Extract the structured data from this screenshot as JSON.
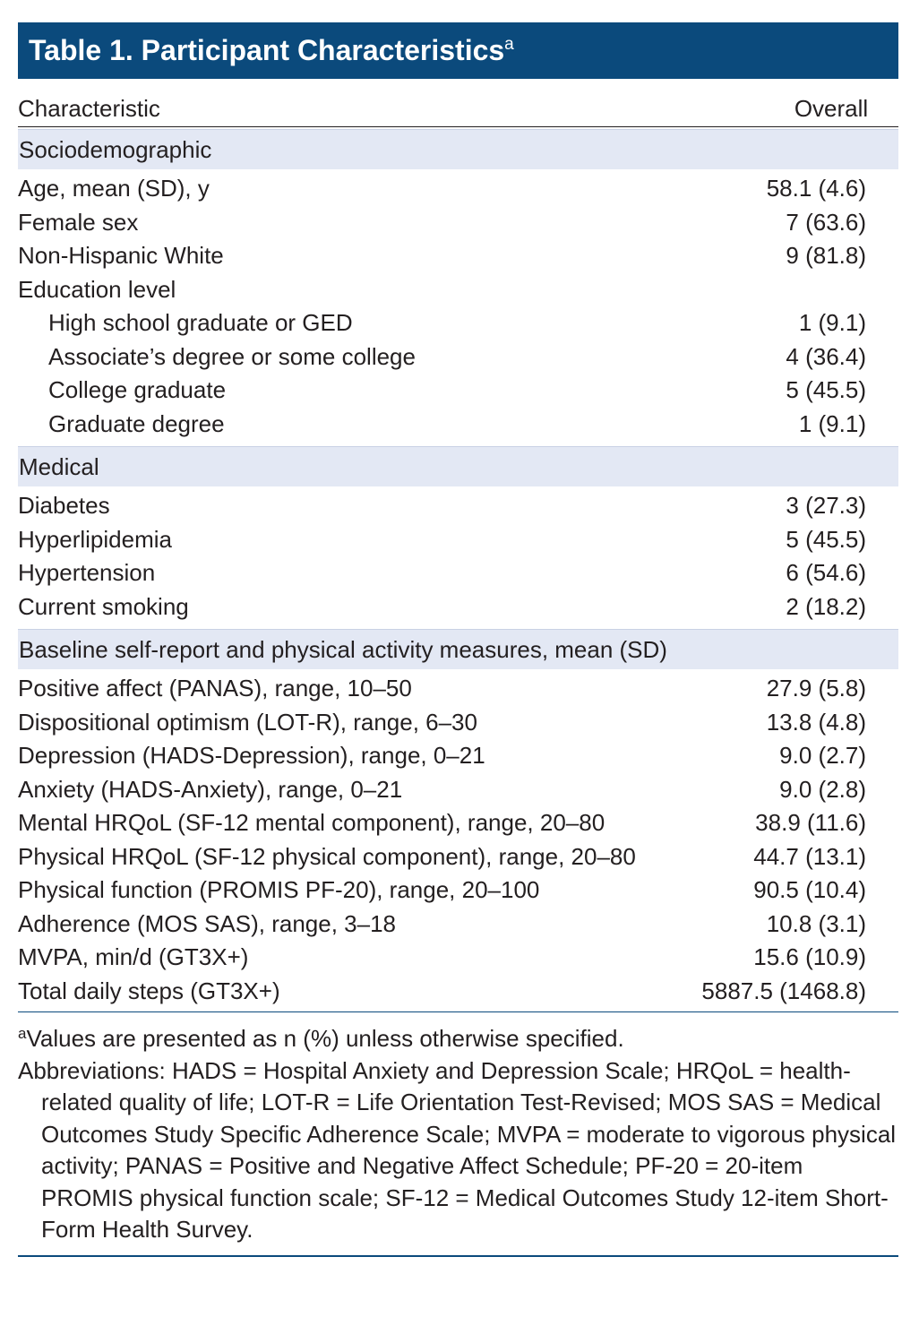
{
  "title": {
    "text": "Table 1. Participant Characteristics",
    "superscript": "a"
  },
  "table": {
    "header": [
      "Characteristic",
      "Overall"
    ],
    "sections": [
      {
        "label": "Sociodemographic",
        "rows": [
          {
            "label": "Age, mean (SD), y",
            "value": "58.1 (4.6)"
          },
          {
            "label": "Female sex",
            "value": "7 (63.6)"
          },
          {
            "label": "Non-Hispanic White",
            "value": "9 (81.8)"
          },
          {
            "label": "Education level",
            "children": [
              {
                "label": "High school graduate or GED",
                "value": "1 (9.1)"
              },
              {
                "label": "Associate’s degree or some college",
                "value": "4 (36.4)"
              },
              {
                "label": "College graduate",
                "value": "5 (45.5)"
              },
              {
                "label": "Graduate degree",
                "value": "1 (9.1)"
              }
            ]
          }
        ]
      },
      {
        "label": "Medical",
        "rows": [
          {
            "label": "Diabetes",
            "value": "3 (27.3)"
          },
          {
            "label": "Hyperlipidemia",
            "value": "5 (45.5)"
          },
          {
            "label": "Hypertension",
            "value": "6 (54.6)"
          },
          {
            "label": "Current smoking",
            "value": "2 (18.2)"
          }
        ]
      },
      {
        "label": "Baseline self-report and physical activity measures, mean (SD)",
        "rows": [
          {
            "label": "Positive affect (PANAS), range, 10–50",
            "value": "27.9 (5.8)"
          },
          {
            "label": "Dispositional optimism (LOT-R), range, 6–30",
            "value": "13.8 (4.8)"
          },
          {
            "label": "Depression (HADS-Depression), range, 0–21",
            "value": "9.0 (2.7)"
          },
          {
            "label": "Anxiety (HADS-Anxiety), range, 0–21",
            "value": "9.0 (2.8)"
          },
          {
            "label": "Mental HRQoL (SF-12 mental component), range, 20–80",
            "value": "38.9 (11.6)"
          },
          {
            "label": "Physical HRQoL (SF-12 physical component), range, 20–80",
            "value": "44.7 (13.1)"
          },
          {
            "label": "Physical function (PROMIS PF-20), range, 20–100",
            "value": "90.5 (10.4)"
          },
          {
            "label": "Adherence (MOS SAS), range, 3–18",
            "value": "10.8 (3.1)"
          },
          {
            "label": "MVPA, min/d (GT3X+)",
            "value": "15.6 (10.9)"
          },
          {
            "label": "Total daily steps (GT3X+)",
            "value": "5887.5 (1468.8)"
          }
        ]
      }
    ]
  },
  "footnotes": [
    {
      "marker": "a",
      "text": "Values are presented as n (%) unless otherwise specified."
    },
    {
      "text": "Abbreviations: HADS = Hospital Anxiety and Depression Scale; HRQoL = health-related quality of life; LOT-R = Life Orientation Test-Revised; MOS SAS = Medical Outcomes Study Specific Adherence Scale; MVPA = moderate to vigorous physical activity; PANAS = Positive and Negative Affect Schedule; PF-20 = 20-item PROMIS physical function scale; SF-12 = Medical Outcomes Study 12-item Short-Form Health Survey."
    }
  ]
}
